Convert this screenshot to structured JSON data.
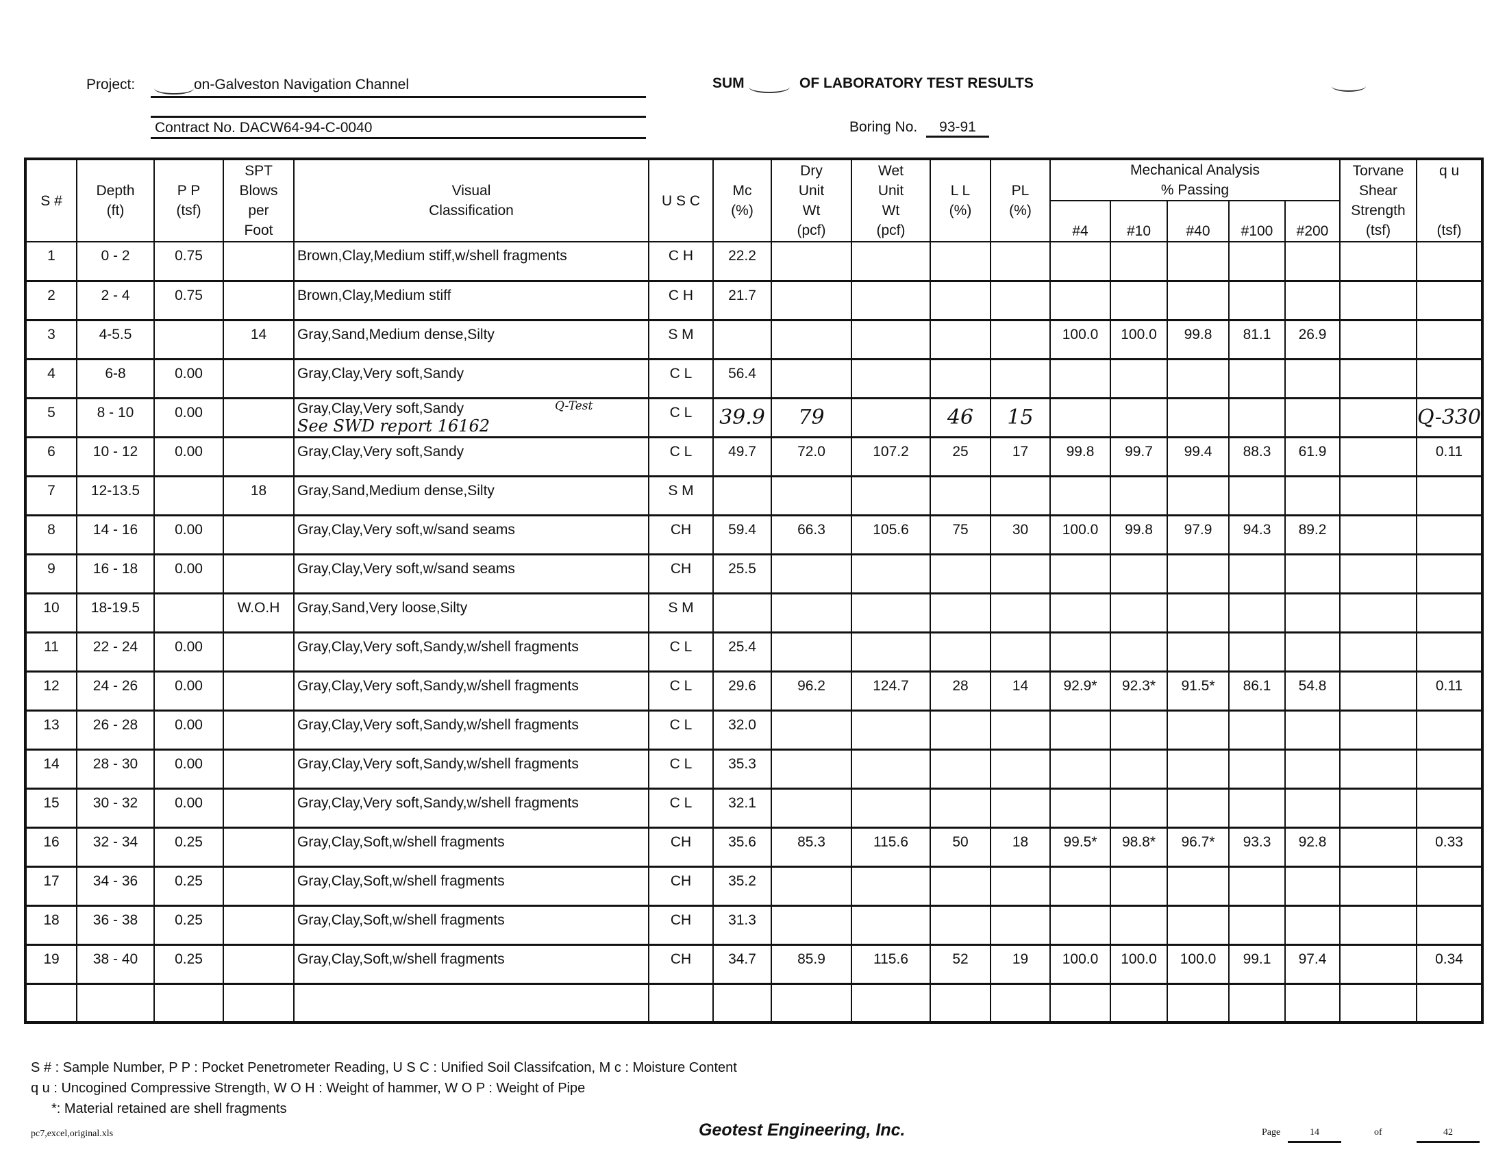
{
  "header": {
    "project_label": "Project:",
    "project_name": "on-Galveston Navigation Channel",
    "title": "SUM",
    "title_rest": "OF LABORATORY TEST RESULTS",
    "contract": "Contract No. DACW64-94-C-0040",
    "boring_label": "Boring No.",
    "boring_no": "93-91"
  },
  "columns": {
    "s": "S #",
    "depth": [
      "Depth",
      "(ft)"
    ],
    "pp": [
      "P P",
      "(tsf)"
    ],
    "spt": [
      "SPT",
      "Blows",
      "per",
      "Foot"
    ],
    "visual": [
      "Visual",
      "Classification"
    ],
    "usc": "U S C",
    "mc": [
      "Mc",
      "(%)"
    ],
    "dry": [
      "Dry",
      "Unit",
      "Wt",
      "(pcf)"
    ],
    "wet": [
      "Wet",
      "Unit",
      "Wt",
      "(pcf)"
    ],
    "ll": [
      "L L",
      "(%)"
    ],
    "pl": [
      "PL",
      "(%)"
    ],
    "mech": [
      "Mechanical Analysis",
      "% Passing"
    ],
    "sieves": [
      "#4",
      "#10",
      "#40",
      "#100",
      "#200"
    ],
    "torvane": [
      "Torvane",
      "Shear",
      "Strength",
      "(tsf)"
    ],
    "qu": [
      "q u",
      "(tsf)"
    ]
  },
  "rows": [
    [
      "1",
      "0 - 2",
      "0.75",
      "",
      "Brown,Clay,Medium stiff,w/shell fragments",
      "C H",
      "22.2",
      "",
      "",
      "",
      "",
      "",
      "",
      "",
      "",
      "",
      "",
      ""
    ],
    [
      "2",
      "2 - 4",
      "0.75",
      "",
      "Brown,Clay,Medium stiff",
      "C H",
      "21.7",
      "",
      "",
      "",
      "",
      "",
      "",
      "",
      "",
      "",
      "",
      ""
    ],
    [
      "3",
      "4-5.5",
      "",
      "14",
      "Gray,Sand,Medium dense,Silty",
      "S M",
      "",
      "",
      "",
      "",
      "",
      "100.0",
      "100.0",
      "99.8",
      "81.1",
      "26.9",
      "",
      ""
    ],
    [
      "4",
      "6-8",
      "0.00",
      "",
      "Gray,Clay,Very soft,Sandy",
      "C L",
      "56.4",
      "",
      "",
      "",
      "",
      "",
      "",
      "",
      "",
      "",
      "",
      ""
    ],
    [
      "5",
      "8 - 10",
      "0.00",
      "",
      "Gray,Clay,Very soft,Sandy",
      "C L",
      "39.9",
      "79",
      "",
      "46",
      "15",
      "",
      "",
      "",
      "",
      "",
      "",
      "Q-330"
    ],
    [
      "6",
      "10 - 12",
      "0.00",
      "",
      "Gray,Clay,Very soft,Sandy",
      "C L",
      "49.7",
      "72.0",
      "107.2",
      "25",
      "17",
      "99.8",
      "99.7",
      "99.4",
      "88.3",
      "61.9",
      "",
      "0.11"
    ],
    [
      "7",
      "12-13.5",
      "",
      "18",
      "Gray,Sand,Medium dense,Silty",
      "S M",
      "",
      "",
      "",
      "",
      "",
      "",
      "",
      "",
      "",
      "",
      "",
      ""
    ],
    [
      "8",
      "14 - 16",
      "0.00",
      "",
      "Gray,Clay,Very soft,w/sand seams",
      "CH",
      "59.4",
      "66.3",
      "105.6",
      "75",
      "30",
      "100.0",
      "99.8",
      "97.9",
      "94.3",
      "89.2",
      "",
      ""
    ],
    [
      "9",
      "16 - 18",
      "0.00",
      "",
      "Gray,Clay,Very soft,w/sand seams",
      "CH",
      "25.5",
      "",
      "",
      "",
      "",
      "",
      "",
      "",
      "",
      "",
      "",
      ""
    ],
    [
      "10",
      "18-19.5",
      "",
      "W.O.H",
      "Gray,Sand,Very loose,Silty",
      "S M",
      "",
      "",
      "",
      "",
      "",
      "",
      "",
      "",
      "",
      "",
      "",
      ""
    ],
    [
      "11",
      "22 - 24",
      "0.00",
      "",
      "Gray,Clay,Very soft,Sandy,w/shell fragments",
      "C L",
      "25.4",
      "",
      "",
      "",
      "",
      "",
      "",
      "",
      "",
      "",
      "",
      ""
    ],
    [
      "12",
      "24 - 26",
      "0.00",
      "",
      "Gray,Clay,Very soft,Sandy,w/shell fragments",
      "C L",
      "29.6",
      "96.2",
      "124.7",
      "28",
      "14",
      "92.9*",
      "92.3*",
      "91.5*",
      "86.1",
      "54.8",
      "",
      "0.11"
    ],
    [
      "13",
      "26 - 28",
      "0.00",
      "",
      "Gray,Clay,Very soft,Sandy,w/shell fragments",
      "C L",
      "32.0",
      "",
      "",
      "",
      "",
      "",
      "",
      "",
      "",
      "",
      "",
      ""
    ],
    [
      "14",
      "28 - 30",
      "0.00",
      "",
      "Gray,Clay,Very soft,Sandy,w/shell fragments",
      "C L",
      "35.3",
      "",
      "",
      "",
      "",
      "",
      "",
      "",
      "",
      "",
      "",
      ""
    ],
    [
      "15",
      "30 - 32",
      "0.00",
      "",
      "Gray,Clay,Very soft,Sandy,w/shell fragments",
      "C L",
      "32.1",
      "",
      "",
      "",
      "",
      "",
      "",
      "",
      "",
      "",
      "",
      ""
    ],
    [
      "16",
      "32 - 34",
      "0.25",
      "",
      "Gray,Clay,Soft,w/shell fragments",
      "CH",
      "35.6",
      "85.3",
      "115.6",
      "50",
      "18",
      "99.5*",
      "98.8*",
      "96.7*",
      "93.3",
      "92.8",
      "",
      "0.33"
    ],
    [
      "17",
      "34 - 36",
      "0.25",
      "",
      "Gray,Clay,Soft,w/shell fragments",
      "CH",
      "35.2",
      "",
      "",
      "",
      "",
      "",
      "",
      "",
      "",
      "",
      "",
      ""
    ],
    [
      "18",
      "36 - 38",
      "0.25",
      "",
      "Gray,Clay,Soft,w/shell fragments",
      "CH",
      "31.3",
      "",
      "",
      "",
      "",
      "",
      "",
      "",
      "",
      "",
      "",
      ""
    ],
    [
      "19",
      "38 - 40",
      "0.25",
      "",
      "Gray,Clay,Soft,w/shell fragments",
      "CH",
      "34.7",
      "85.9",
      "115.6",
      "52",
      "19",
      "100.0",
      "100.0",
      "100.0",
      "99.1",
      "97.4",
      "",
      "0.34"
    ],
    [
      "",
      "",
      "",
      "",
      "",
      "",
      "",
      "",
      "",
      "",
      "",
      "",
      "",
      "",
      "",
      "",
      "",
      ""
    ]
  ],
  "handwritten": {
    "row": 4,
    "columns": [
      6,
      7,
      9,
      10,
      17
    ],
    "q_test": "Q-Test",
    "note": "See SWD report 16162"
  },
  "footer": {
    "legend1": "S # : Sample Number,  P P :  Pocket Penetrometer Reading,  U S C :  Unified Soil Classifcation,  M c :  Moisture Content",
    "legend2": "q u : Uncogined Compressive Strength,  W O H : Weight of hammer,  W O P : Weight of Pipe",
    "legend3": "*: Material retained are shell fragments",
    "file": "pc7,excel,original.xls",
    "company": "Geotest Engineering, Inc.",
    "page_label": "Page",
    "page": "14",
    "of_label": "of",
    "total": "42"
  }
}
